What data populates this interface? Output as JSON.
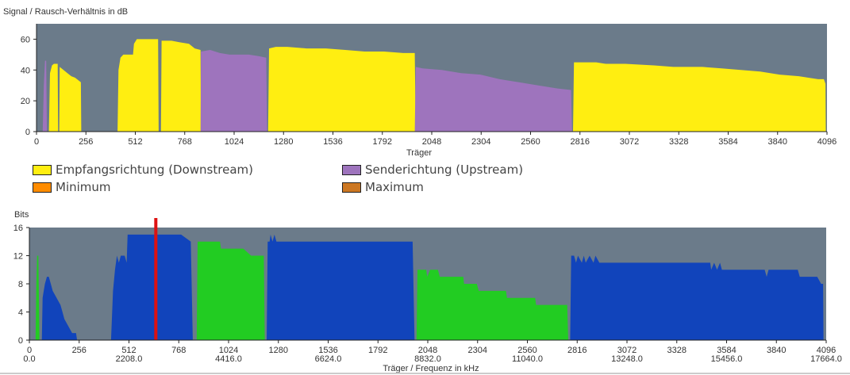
{
  "colors": {
    "plot_bg": "#6b7b8a",
    "downstream": "#ffee11",
    "upstream": "#9e74bd",
    "minimum": "#ff8c00",
    "maximum": "#cc7722",
    "bits_downstream": "#1144bb",
    "bits_upstream": "#22cc22",
    "marker": "#dd1111"
  },
  "snr_chart": {
    "ylabel": "Signal / Rausch-Verhältnis in dB",
    "xlabel": "Träger"
  },
  "legend": {
    "downstream": "Empfangsrichtung (Downstream)",
    "upstream": "Senderichtung (Upstream)",
    "minimum": "Minimum",
    "maximum": "Maximum"
  },
  "bits_chart": {
    "ylabel": "Bits",
    "xlabel": "Träger / Frequenz in kHz"
  },
  "chart_data": [
    {
      "type": "area",
      "title": "",
      "ylabel": "Signal / Rausch-Verhältnis in dB",
      "xlabel": "Träger",
      "xlim": [
        0,
        4096
      ],
      "ylim": [
        0,
        70
      ],
      "xticks": [
        0,
        256,
        512,
        768,
        1024,
        1280,
        1536,
        1792,
        2048,
        2304,
        2560,
        2816,
        3072,
        3328,
        3584,
        3840,
        4096
      ],
      "yticks": [
        0,
        20,
        40,
        60
      ],
      "grid": false,
      "series": [
        {
          "name": "Empfangsrichtung (Downstream)",
          "color": "#ffee11",
          "points": [
            [
              64,
              0
            ],
            [
              70,
              38
            ],
            [
              80,
              43
            ],
            [
              90,
              44
            ],
            [
              100,
              44
            ],
            [
              110,
              44
            ],
            [
              112,
              0
            ],
            [
              118,
              0
            ],
            [
              120,
              42
            ],
            [
              140,
              40
            ],
            [
              160,
              38
            ],
            [
              180,
              36
            ],
            [
              200,
              35
            ],
            [
              220,
              33
            ],
            [
              230,
              32
            ],
            [
              232,
              0
            ],
            [
              420,
              0
            ],
            [
              425,
              40
            ],
            [
              435,
              48
            ],
            [
              450,
              50
            ],
            [
              470,
              50
            ],
            [
              490,
              50
            ],
            [
              500,
              50
            ],
            [
              505,
              57
            ],
            [
              520,
              60
            ],
            [
              560,
              60
            ],
            [
              600,
              60
            ],
            [
              630,
              60
            ],
            [
              633,
              0
            ],
            [
              645,
              0
            ],
            [
              648,
              59
            ],
            [
              700,
              59
            ],
            [
              740,
              58
            ],
            [
              790,
              57
            ],
            [
              820,
              54
            ],
            [
              850,
              53
            ],
            [
              852,
              0
            ],
            [
              1200,
              0
            ],
            [
              1205,
              54
            ],
            [
              1240,
              55
            ],
            [
              1300,
              55
            ],
            [
              1400,
              54
            ],
            [
              1500,
              54
            ],
            [
              1600,
              53
            ],
            [
              1700,
              52
            ],
            [
              1800,
              52
            ],
            [
              1900,
              51
            ],
            [
              1950,
              51
            ],
            [
              1960,
              51
            ],
            [
              1965,
              0
            ],
            [
              2780,
              0
            ],
            [
              2785,
              45
            ],
            [
              2850,
              45
            ],
            [
              2900,
              45
            ],
            [
              2950,
              44
            ],
            [
              3050,
              44
            ],
            [
              3200,
              43
            ],
            [
              3300,
              42
            ],
            [
              3450,
              42
            ],
            [
              3550,
              41
            ],
            [
              3650,
              40
            ],
            [
              3750,
              39
            ],
            [
              3850,
              37
            ],
            [
              3950,
              36
            ],
            [
              4050,
              34
            ],
            [
              4080,
              34
            ],
            [
              4088,
              31
            ],
            [
              4090,
              0
            ]
          ]
        },
        {
          "name": "Senderichtung (Upstream)",
          "color": "#9e74bd",
          "points": [
            [
              32,
              0
            ],
            [
              38,
              30
            ],
            [
              44,
              46
            ],
            [
              50,
              46
            ],
            [
              54,
              0
            ],
            [
              850,
              0
            ],
            [
              852,
              52
            ],
            [
              900,
              53
            ],
            [
              950,
              51
            ],
            [
              1000,
              50
            ],
            [
              1050,
              50
            ],
            [
              1100,
              50
            ],
            [
              1150,
              49
            ],
            [
              1190,
              48
            ],
            [
              1195,
              0
            ],
            [
              1960,
              0
            ],
            [
              1965,
              42
            ],
            [
              2000,
              41
            ],
            [
              2100,
              40
            ],
            [
              2200,
              38
            ],
            [
              2300,
              37
            ],
            [
              2400,
              34
            ],
            [
              2500,
              32
            ],
            [
              2600,
              30
            ],
            [
              2700,
              28
            ],
            [
              2770,
              27
            ],
            [
              2775,
              0
            ]
          ]
        },
        {
          "name": "Minimum",
          "color": "#ff8c00",
          "points": []
        },
        {
          "name": "Maximum",
          "color": "#cc7722",
          "points": []
        }
      ]
    },
    {
      "type": "area",
      "title": "",
      "ylabel": "Bits",
      "xlabel": "Träger / Frequenz in kHz",
      "xlim": [
        0,
        4096
      ],
      "ylim": [
        0,
        16
      ],
      "xticks": [
        0,
        256,
        512,
        768,
        1024,
        1280,
        1536,
        1792,
        2048,
        2304,
        2560,
        2816,
        3072,
        3328,
        3584,
        3840,
        4096
      ],
      "freq_ticks": [
        {
          "x": 0,
          "label": "0.0"
        },
        {
          "x": 512,
          "label": "2208.0"
        },
        {
          "x": 1024,
          "label": "4416.0"
        },
        {
          "x": 1536,
          "label": "6624.0"
        },
        {
          "x": 2048,
          "label": "8832.0"
        },
        {
          "x": 2560,
          "label": "11040.0"
        },
        {
          "x": 3072,
          "label": "13248.0"
        },
        {
          "x": 3584,
          "label": "15456.0"
        },
        {
          "x": 4096,
          "label": "17664.0"
        }
      ],
      "yticks": [
        0,
        4,
        8,
        12,
        16
      ],
      "grid": false,
      "marker_x": 650,
      "series": [
        {
          "name": "downstream bits",
          "color": "#1144bb",
          "points": [
            [
              64,
              0
            ],
            [
              68,
              6
            ],
            [
              74,
              7
            ],
            [
              80,
              8
            ],
            [
              90,
              9
            ],
            [
              100,
              9
            ],
            [
              110,
              8
            ],
            [
              120,
              7
            ],
            [
              140,
              6
            ],
            [
              160,
              5
            ],
            [
              170,
              4
            ],
            [
              180,
              3
            ],
            [
              200,
              2
            ],
            [
              220,
              1
            ],
            [
              240,
              1
            ],
            [
              245,
              0
            ],
            [
              420,
              0
            ],
            [
              430,
              7
            ],
            [
              440,
              10
            ],
            [
              450,
              12
            ],
            [
              460,
              11
            ],
            [
              470,
              12
            ],
            [
              490,
              12
            ],
            [
              500,
              11
            ],
            [
              505,
              15
            ],
            [
              520,
              15
            ],
            [
              600,
              15
            ],
            [
              700,
              15
            ],
            [
              780,
              15
            ],
            [
              830,
              14
            ],
            [
              840,
              0
            ],
            [
              1220,
              0
            ],
            [
              1225,
              14
            ],
            [
              1235,
              14
            ],
            [
              1240,
              15
            ],
            [
              1250,
              14
            ],
            [
              1260,
              15
            ],
            [
              1270,
              14
            ],
            [
              1290,
              14
            ],
            [
              1400,
              14
            ],
            [
              1500,
              14
            ],
            [
              1600,
              14
            ],
            [
              1700,
              14
            ],
            [
              1800,
              14
            ],
            [
              1900,
              14
            ],
            [
              1970,
              14
            ],
            [
              1980,
              0
            ],
            [
              2780,
              0
            ],
            [
              2785,
              12
            ],
            [
              2800,
              12
            ],
            [
              2810,
              11
            ],
            [
              2820,
              12
            ],
            [
              2840,
              11
            ],
            [
              2850,
              12
            ],
            [
              2860,
              11
            ],
            [
              2880,
              12
            ],
            [
              2900,
              11
            ],
            [
              2910,
              12
            ],
            [
              2930,
              11
            ],
            [
              3000,
              11
            ],
            [
              3200,
              11
            ],
            [
              3400,
              11
            ],
            [
              3500,
              11
            ],
            [
              3505,
              10
            ],
            [
              3520,
              11
            ],
            [
              3535,
              10
            ],
            [
              3550,
              11
            ],
            [
              3560,
              10
            ],
            [
              3600,
              10
            ],
            [
              3780,
              10
            ],
            [
              3790,
              9
            ],
            [
              3800,
              10
            ],
            [
              3900,
              10
            ],
            [
              3950,
              10
            ],
            [
              3960,
              9
            ],
            [
              4030,
              9
            ],
            [
              4050,
              9
            ],
            [
              4070,
              8
            ],
            [
              4080,
              8
            ],
            [
              4082,
              0
            ]
          ]
        },
        {
          "name": "upstream bits",
          "color": "#22cc22",
          "points": [
            [
              32,
              0
            ],
            [
              36,
              8
            ],
            [
              40,
              12
            ],
            [
              46,
              12
            ],
            [
              52,
              0
            ],
            [
              860,
              0
            ],
            [
              865,
              14
            ],
            [
              980,
              14
            ],
            [
              985,
              13
            ],
            [
              1100,
              13
            ],
            [
              1140,
              12
            ],
            [
              1205,
              12
            ],
            [
              1210,
              0
            ],
            [
              1990,
              0
            ],
            [
              1995,
              10
            ],
            [
              2040,
              10
            ],
            [
              2045,
              9
            ],
            [
              2060,
              10
            ],
            [
              2100,
              10
            ],
            [
              2110,
              9
            ],
            [
              2230,
              9
            ],
            [
              2235,
              8
            ],
            [
              2300,
              8
            ],
            [
              2310,
              7
            ],
            [
              2450,
              7
            ],
            [
              2455,
              6
            ],
            [
              2600,
              6
            ],
            [
              2605,
              5
            ],
            [
              2700,
              5
            ],
            [
              2765,
              5
            ],
            [
              2770,
              0
            ]
          ]
        }
      ]
    }
  ]
}
